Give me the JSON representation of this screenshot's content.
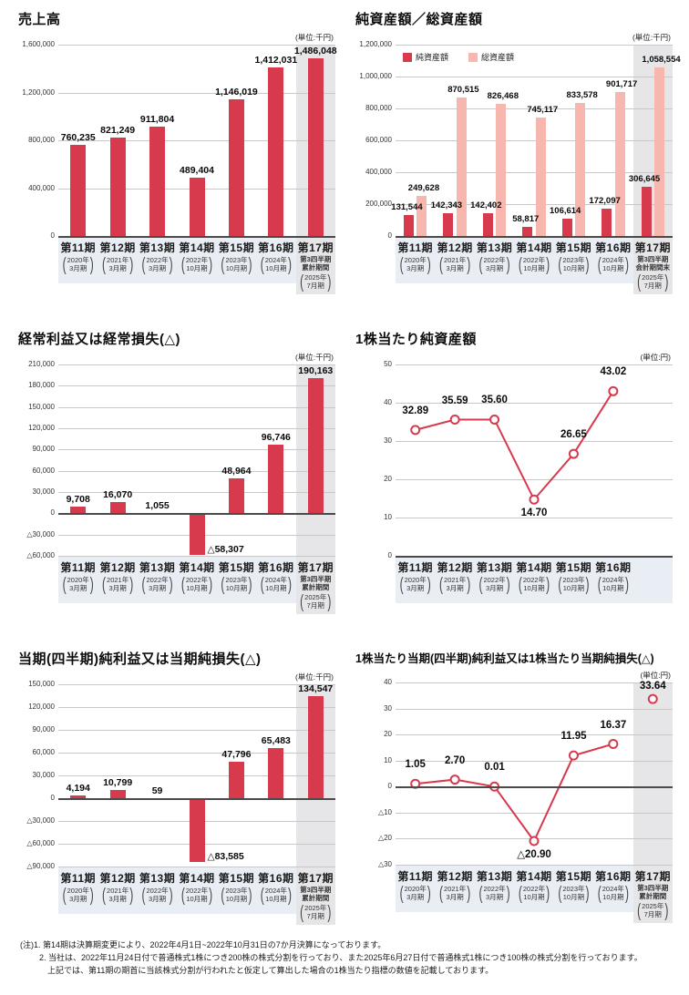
{
  "colors": {
    "bar_red": "#d7394d",
    "bar_pink": "#f8b7ae",
    "band_blue": "#e9edf4",
    "highlight_gray": "#e6e6e8",
    "grid_line": "#c8c8c8",
    "zero_line": "#4a4a4a"
  },
  "chart_data": [
    {
      "type": "bar",
      "title": "売上高",
      "unit": "(単位:千円)",
      "ylim": [
        0,
        1600000
      ],
      "yticks": [
        {
          "v": 0,
          "label": "0"
        },
        {
          "v": 400000,
          "label": "400,000"
        },
        {
          "v": 800000,
          "label": "800,000"
        },
        {
          "v": 1200000,
          "label": "1,200,000"
        },
        {
          "v": 1600000,
          "label": "1,600,000"
        }
      ],
      "values": [
        760235,
        821249,
        911804,
        489404,
        1146019,
        1412031,
        1486048
      ],
      "value_labels": [
        "760,235",
        "821,249",
        "911,804",
        "489,404",
        "1,146,019",
        "1,412,031",
        "1,486,048"
      ],
      "highlight_last": true,
      "categories": [
        {
          "period": "第11期",
          "sub": [],
          "paren": [
            "2020年",
            "3月期"
          ]
        },
        {
          "period": "第12期",
          "sub": [],
          "paren": [
            "2021年",
            "3月期"
          ]
        },
        {
          "period": "第13期",
          "sub": [],
          "paren": [
            "2022年",
            "3月期"
          ]
        },
        {
          "period": "第14期",
          "sub": [],
          "paren": [
            "2022年",
            "10月期"
          ]
        },
        {
          "period": "第15期",
          "sub": [],
          "paren": [
            "2023年",
            "10月期"
          ]
        },
        {
          "period": "第16期",
          "sub": [],
          "paren": [
            "2024年",
            "10月期"
          ]
        },
        {
          "period": "第17期",
          "sub": [
            "第3四半期",
            "累計期間"
          ],
          "paren": [
            "2025年",
            "7月期"
          ]
        }
      ]
    },
    {
      "type": "grouped_bar",
      "title": "純資産額／総資産額",
      "unit": "(単位:千円)",
      "ylim": [
        0,
        1200000
      ],
      "yticks": [
        {
          "v": 0,
          "label": "0"
        },
        {
          "v": 200000,
          "label": "200,000"
        },
        {
          "v": 400000,
          "label": "400,000"
        },
        {
          "v": 600000,
          "label": "600,000"
        },
        {
          "v": 800000,
          "label": "800,000"
        },
        {
          "v": 1000000,
          "label": "1,000,000"
        },
        {
          "v": 1200000,
          "label": "1,200,000"
        }
      ],
      "legend": [
        {
          "label": "純資産額",
          "color": "red"
        },
        {
          "label": "総資産額",
          "color": "pink"
        }
      ],
      "series": [
        {
          "name": "純資産額",
          "values": [
            131544,
            142343,
            142402,
            58817,
            106614,
            172097,
            306645
          ],
          "labels": [
            "131,544",
            "142,343",
            "142,402",
            "58,817",
            "106,614",
            "172,097",
            "306,645"
          ]
        },
        {
          "name": "総資産額",
          "values": [
            249628,
            870515,
            826468,
            745117,
            833578,
            901717,
            1058554
          ],
          "labels": [
            "249,628",
            "870,515",
            "826,468",
            "745,117",
            "833,578",
            "901,717",
            "1,058,554"
          ]
        }
      ],
      "highlight_last": true,
      "categories": [
        {
          "period": "第11期",
          "sub": [],
          "paren": [
            "2020年",
            "3月期"
          ]
        },
        {
          "period": "第12期",
          "sub": [],
          "paren": [
            "2021年",
            "3月期"
          ]
        },
        {
          "period": "第13期",
          "sub": [],
          "paren": [
            "2022年",
            "3月期"
          ]
        },
        {
          "period": "第14期",
          "sub": [],
          "paren": [
            "2022年",
            "10月期"
          ]
        },
        {
          "period": "第15期",
          "sub": [],
          "paren": [
            "2023年",
            "10月期"
          ]
        },
        {
          "period": "第16期",
          "sub": [],
          "paren": [
            "2024年",
            "10月期"
          ]
        },
        {
          "period": "第17期",
          "sub": [
            "第3四半期",
            "会計期間末"
          ],
          "paren": [
            "2025年",
            "7月期"
          ]
        }
      ]
    },
    {
      "type": "bar",
      "title": "経常利益又は経常損失(△)",
      "unit": "(単位:千円)",
      "ylim": [
        -60000,
        210000
      ],
      "yticks": [
        {
          "v": -60000,
          "label": "△60,000"
        },
        {
          "v": -30000,
          "label": "△30,000"
        },
        {
          "v": 0,
          "label": "0"
        },
        {
          "v": 30000,
          "label": "30,000"
        },
        {
          "v": 60000,
          "label": "60,000"
        },
        {
          "v": 90000,
          "label": "90,000"
        },
        {
          "v": 120000,
          "label": "120,000"
        },
        {
          "v": 150000,
          "label": "150,000"
        },
        {
          "v": 180000,
          "label": "180,000"
        },
        {
          "v": 210000,
          "label": "210,000"
        }
      ],
      "values": [
        9708,
        16070,
        1055,
        -58307,
        48964,
        96746,
        190163
      ],
      "value_labels": [
        "9,708",
        "16,070",
        "1,055",
        "△58,307",
        "48,964",
        "96,746",
        "190,163"
      ],
      "highlight_last": true,
      "categories": [
        {
          "period": "第11期",
          "sub": [],
          "paren": [
            "2020年",
            "3月期"
          ]
        },
        {
          "period": "第12期",
          "sub": [],
          "paren": [
            "2021年",
            "3月期"
          ]
        },
        {
          "period": "第13期",
          "sub": [],
          "paren": [
            "2022年",
            "3月期"
          ]
        },
        {
          "period": "第14期",
          "sub": [],
          "paren": [
            "2022年",
            "10月期"
          ]
        },
        {
          "period": "第15期",
          "sub": [],
          "paren": [
            "2023年",
            "10月期"
          ]
        },
        {
          "period": "第16期",
          "sub": [],
          "paren": [
            "2024年",
            "10月期"
          ]
        },
        {
          "period": "第17期",
          "sub": [
            "第3四半期",
            "累計期間"
          ],
          "paren": [
            "2025年",
            "7月期"
          ]
        }
      ]
    },
    {
      "type": "line",
      "title": "1株当たり純資産額",
      "unit": "(単位:円)",
      "ylim": [
        0,
        50
      ],
      "yticks": [
        {
          "v": 0,
          "label": "0"
        },
        {
          "v": 10,
          "label": "10"
        },
        {
          "v": 20,
          "label": "20"
        },
        {
          "v": 30,
          "label": "30"
        },
        {
          "v": 40,
          "label": "40"
        },
        {
          "v": 50,
          "label": "50"
        }
      ],
      "slots": 7,
      "values": [
        32.89,
        35.59,
        35.6,
        14.7,
        26.65,
        43.02
      ],
      "value_labels": [
        "32.89",
        "35.59",
        "35.60",
        "14.70",
        "26.65",
        "43.02"
      ],
      "label_pos": [
        "above",
        "above",
        "above",
        "below",
        "above",
        "above"
      ],
      "highlight_last": false,
      "categories": [
        {
          "period": "第11期",
          "sub": [],
          "paren": [
            "2020年",
            "3月期"
          ]
        },
        {
          "period": "第12期",
          "sub": [],
          "paren": [
            "2021年",
            "3月期"
          ]
        },
        {
          "period": "第13期",
          "sub": [],
          "paren": [
            "2022年",
            "3月期"
          ]
        },
        {
          "period": "第14期",
          "sub": [],
          "paren": [
            "2022年",
            "10月期"
          ]
        },
        {
          "period": "第15期",
          "sub": [],
          "paren": [
            "2023年",
            "10月期"
          ]
        },
        {
          "period": "第16期",
          "sub": [],
          "paren": [
            "2024年",
            "10月期"
          ]
        }
      ]
    },
    {
      "type": "bar",
      "title": "当期(四半期)純利益又は当期純損失(△)",
      "unit": "(単位:千円)",
      "ylim": [
        -90000,
        150000
      ],
      "yticks": [
        {
          "v": -90000,
          "label": "△90,000"
        },
        {
          "v": -60000,
          "label": "△60,000"
        },
        {
          "v": -30000,
          "label": "△30,000"
        },
        {
          "v": 0,
          "label": "0"
        },
        {
          "v": 30000,
          "label": "30,000"
        },
        {
          "v": 60000,
          "label": "60,000"
        },
        {
          "v": 90000,
          "label": "90,000"
        },
        {
          "v": 120000,
          "label": "120,000"
        },
        {
          "v": 150000,
          "label": "150,000"
        }
      ],
      "values": [
        4194,
        10799,
        59,
        -83585,
        47796,
        65483,
        134547
      ],
      "value_labels": [
        "4,194",
        "10,799",
        "59",
        "△83,585",
        "47,796",
        "65,483",
        "134,547"
      ],
      "highlight_last": true,
      "categories": [
        {
          "period": "第11期",
          "sub": [],
          "paren": [
            "2020年",
            "3月期"
          ]
        },
        {
          "period": "第12期",
          "sub": [],
          "paren": [
            "2021年",
            "3月期"
          ]
        },
        {
          "period": "第13期",
          "sub": [],
          "paren": [
            "2022年",
            "3月期"
          ]
        },
        {
          "period": "第14期",
          "sub": [],
          "paren": [
            "2022年",
            "10月期"
          ]
        },
        {
          "period": "第15期",
          "sub": [],
          "paren": [
            "2023年",
            "10月期"
          ]
        },
        {
          "period": "第16期",
          "sub": [],
          "paren": [
            "2024年",
            "10月期"
          ]
        },
        {
          "period": "第17期",
          "sub": [
            "第3四半期",
            "累計期間"
          ],
          "paren": [
            "2025年",
            "7月期"
          ]
        }
      ]
    },
    {
      "type": "line",
      "title": "1株当たり当期(四半期)純利益又は1株当たり当期純損失(△)",
      "unit": "(単位:円)",
      "ylim": [
        -30,
        40
      ],
      "yticks": [
        {
          "v": -30,
          "label": "△30"
        },
        {
          "v": -20,
          "label": "△20"
        },
        {
          "v": -10,
          "label": "△10"
        },
        {
          "v": 0,
          "label": "0"
        },
        {
          "v": 10,
          "label": "10"
        },
        {
          "v": 20,
          "label": "20"
        },
        {
          "v": 30,
          "label": "30"
        },
        {
          "v": 40,
          "label": "40"
        }
      ],
      "values": [
        1.05,
        2.7,
        0.01,
        -20.9,
        11.95,
        16.37,
        33.64
      ],
      "value_labels": [
        "1.05",
        "2.70",
        "0.01",
        "△20.90",
        "11.95",
        "16.37",
        "33.64"
      ],
      "label_pos": [
        "above",
        "above",
        "above",
        "below",
        "above",
        "above",
        "above"
      ],
      "connected": [
        true,
        true,
        true,
        true,
        true,
        true,
        false
      ],
      "highlight_last": true,
      "categories": [
        {
          "period": "第11期",
          "sub": [],
          "paren": [
            "2020年",
            "3月期"
          ]
        },
        {
          "period": "第12期",
          "sub": [],
          "paren": [
            "2021年",
            "3月期"
          ]
        },
        {
          "period": "第13期",
          "sub": [],
          "paren": [
            "2022年",
            "3月期"
          ]
        },
        {
          "period": "第14期",
          "sub": [],
          "paren": [
            "2022年",
            "10月期"
          ]
        },
        {
          "period": "第15期",
          "sub": [],
          "paren": [
            "2023年",
            "10月期"
          ]
        },
        {
          "period": "第16期",
          "sub": [],
          "paren": [
            "2024年",
            "10月期"
          ]
        },
        {
          "period": "第17期",
          "sub": [
            "第3四半期",
            "累計期間"
          ],
          "paren": [
            "2025年",
            "7月期"
          ]
        }
      ]
    }
  ],
  "footnote": {
    "line1": "(注)1. 第14期は決算期変更により、2022年4月1日~2022年10月31日の7か月決算になっております。",
    "line2": "2. 当社は、2022年11月24日付で普通株式1株につき200株の株式分割を行っており、また2025年6月27日付で普通株式1株につき100株の株式分割を行っております。",
    "line3": "上記では、第11期の期首に当該株式分割が行われたと仮定して算出した場合の1株当たり指標の数値を記載しております。"
  }
}
